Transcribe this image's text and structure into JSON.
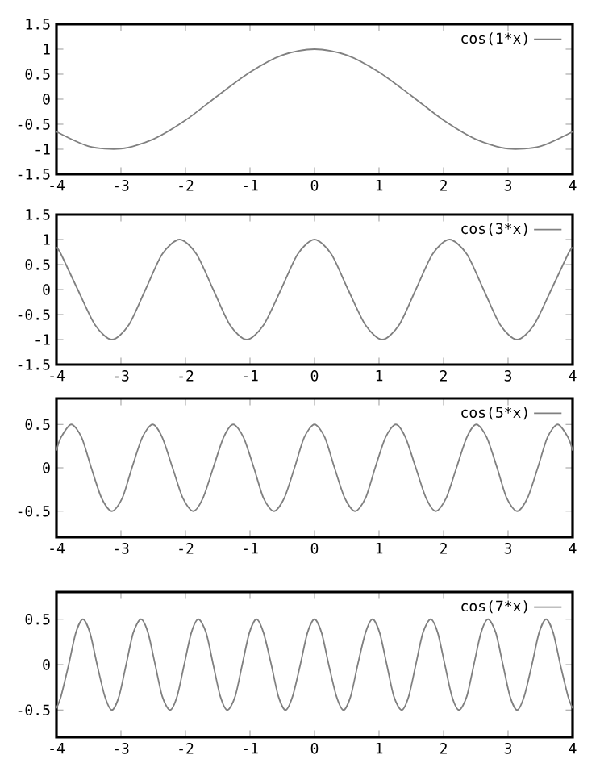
{
  "chart_data": [
    {
      "type": "line",
      "series": [
        {
          "name": "cos(1*x)",
          "color": "#808080",
          "x": [
            -4,
            -3.5,
            -3,
            -2.5,
            -2,
            -1.5,
            -1,
            -0.5,
            0,
            0.5,
            1,
            1.5,
            2,
            2.5,
            3,
            3.5,
            4
          ],
          "values": [
            -0.65,
            -0.94,
            -0.99,
            -0.8,
            -0.42,
            0.07,
            0.54,
            0.88,
            1,
            0.88,
            0.54,
            0.07,
            -0.42,
            -0.8,
            -0.99,
            -0.94,
            -0.65
          ]
        }
      ],
      "xlim": [
        -4,
        4
      ],
      "xticks": [
        -4,
        -3,
        -2,
        -1,
        0,
        1,
        2,
        3,
        4
      ],
      "ylim": [
        -1.5,
        1.5
      ],
      "yticks": [
        -1.5,
        -1,
        -0.5,
        0,
        0.5,
        1,
        1.5
      ],
      "legend": "top right",
      "grid": false
    },
    {
      "type": "line",
      "series": [
        {
          "name": "cos(3*x)",
          "color": "#808080",
          "x": [
            -4,
            -3.93,
            -3.67,
            -3.4,
            -3.14,
            -2.88,
            -2.62,
            -2.36,
            -2.09,
            -1.83,
            -1.57,
            -1.31,
            -1.05,
            -0.79,
            -0.52,
            -0.26,
            0,
            0.26,
            0.52,
            0.79,
            1.05,
            1.31,
            1.57,
            1.83,
            2.09,
            2.36,
            2.62,
            2.88,
            3.14,
            3.4,
            3.67,
            3.93,
            4
          ],
          "values": [
            0.84,
            0.71,
            0,
            -0.71,
            -1,
            -0.71,
            0,
            0.71,
            1,
            0.71,
            0,
            -0.71,
            -1,
            -0.71,
            0,
            0.71,
            1,
            0.71,
            0,
            -0.71,
            -1,
            -0.71,
            0,
            0.71,
            1,
            0.71,
            0,
            -0.71,
            -1,
            -0.71,
            0,
            0.71,
            0.84
          ]
        }
      ],
      "xlim": [
        -4,
        4
      ],
      "xticks": [
        -4,
        -3,
        -2,
        -1,
        0,
        1,
        2,
        3,
        4
      ],
      "ylim": [
        -1.5,
        1.5
      ],
      "yticks": [
        -1.5,
        -1,
        -0.5,
        0,
        0.5,
        1,
        1.5
      ],
      "legend": "top right",
      "grid": false
    },
    {
      "type": "line",
      "series": [
        {
          "name": "cos(5*x)",
          "color": "#808080",
          "x": [
            -4,
            -3.93,
            -3.77,
            -3.61,
            -3.46,
            -3.3,
            -3.14,
            -2.98,
            -2.83,
            -2.67,
            -2.51,
            -2.36,
            -2.2,
            -2.04,
            -1.88,
            -1.73,
            -1.57,
            -1.41,
            -1.26,
            -1.1,
            -0.94,
            -0.79,
            -0.63,
            -0.47,
            -0.31,
            -0.16,
            0,
            0.16,
            0.31,
            0.47,
            0.63,
            0.79,
            0.94,
            1.1,
            1.26,
            1.41,
            1.57,
            1.73,
            1.88,
            2.04,
            2.2,
            2.36,
            2.51,
            2.67,
            2.83,
            2.98,
            3.14,
            3.3,
            3.46,
            3.61,
            3.77,
            3.93,
            4
          ],
          "values": [
            0.2,
            0.35,
            0.5,
            0.35,
            0,
            -0.35,
            -0.5,
            -0.35,
            0,
            0.35,
            0.5,
            0.35,
            0,
            -0.35,
            -0.5,
            -0.35,
            0,
            0.35,
            0.5,
            0.35,
            0,
            -0.35,
            -0.5,
            -0.35,
            0,
            0.35,
            0.5,
            0.35,
            0,
            -0.35,
            -0.5,
            -0.35,
            0,
            0.35,
            0.5,
            0.35,
            0,
            -0.35,
            -0.5,
            -0.35,
            0,
            0.35,
            0.5,
            0.35,
            0,
            -0.35,
            -0.5,
            -0.35,
            0,
            0.35,
            0.5,
            0.35,
            0.2
          ]
        }
      ],
      "xlim": [
        -4,
        4
      ],
      "xticks": [
        -4,
        -3,
        -2,
        -1,
        0,
        1,
        2,
        3,
        4
      ],
      "ylim": [
        -0.8,
        0.8
      ],
      "yticks": [
        -0.5,
        0,
        0.5
      ],
      "legend": "top right",
      "grid": false
    },
    {
      "type": "line",
      "series": [
        {
          "name": "cos(7*x)",
          "color": "#808080",
          "x": [
            -4,
            -3.93,
            -3.81,
            -3.7,
            -3.59,
            -3.48,
            -3.37,
            -3.25,
            -3.14,
            -3.03,
            -2.92,
            -2.81,
            -2.69,
            -2.58,
            -2.47,
            -2.36,
            -2.24,
            -2.13,
            -2.02,
            -1.91,
            -1.8,
            -1.68,
            -1.57,
            -1.46,
            -1.35,
            -1.23,
            -1.12,
            -1.01,
            -0.9,
            -0.79,
            -0.67,
            -0.56,
            -0.45,
            -0.34,
            -0.22,
            -0.11,
            0,
            0.11,
            0.22,
            0.34,
            0.45,
            0.56,
            0.67,
            0.79,
            0.9,
            1.01,
            1.12,
            1.23,
            1.35,
            1.46,
            1.57,
            1.68,
            1.8,
            1.91,
            2.02,
            2.13,
            2.24,
            2.36,
            2.47,
            2.58,
            2.69,
            2.81,
            2.92,
            3.03,
            3.14,
            3.25,
            3.37,
            3.48,
            3.59,
            3.7,
            3.81,
            3.93,
            4
          ],
          "values": [
            -0.48,
            -0.35,
            0,
            0.35,
            0.5,
            0.35,
            0,
            -0.35,
            -0.5,
            -0.35,
            0,
            0.35,
            0.5,
            0.35,
            0,
            -0.35,
            -0.5,
            -0.35,
            0,
            0.35,
            0.5,
            0.35,
            0,
            -0.35,
            -0.5,
            -0.35,
            0,
            0.35,
            0.5,
            0.35,
            0,
            -0.35,
            -0.5,
            -0.35,
            0,
            0.35,
            0.5,
            0.35,
            0,
            -0.35,
            -0.5,
            -0.35,
            0,
            0.35,
            0.5,
            0.35,
            0,
            -0.35,
            -0.5,
            -0.35,
            0,
            0.35,
            0.5,
            0.35,
            0,
            -0.35,
            -0.5,
            -0.35,
            0,
            0.35,
            0.5,
            0.35,
            0,
            -0.35,
            -0.5,
            -0.35,
            0,
            0.35,
            0.5,
            0.35,
            0,
            -0.35,
            -0.48
          ]
        }
      ],
      "xlim": [
        -4,
        4
      ],
      "xticks": [
        -4,
        -3,
        -2,
        -1,
        0,
        1,
        2,
        3,
        4
      ],
      "ylim": [
        -0.8,
        0.8
      ],
      "yticks": [
        -0.5,
        0,
        0.5
      ],
      "legend": "top right",
      "grid": false
    }
  ]
}
